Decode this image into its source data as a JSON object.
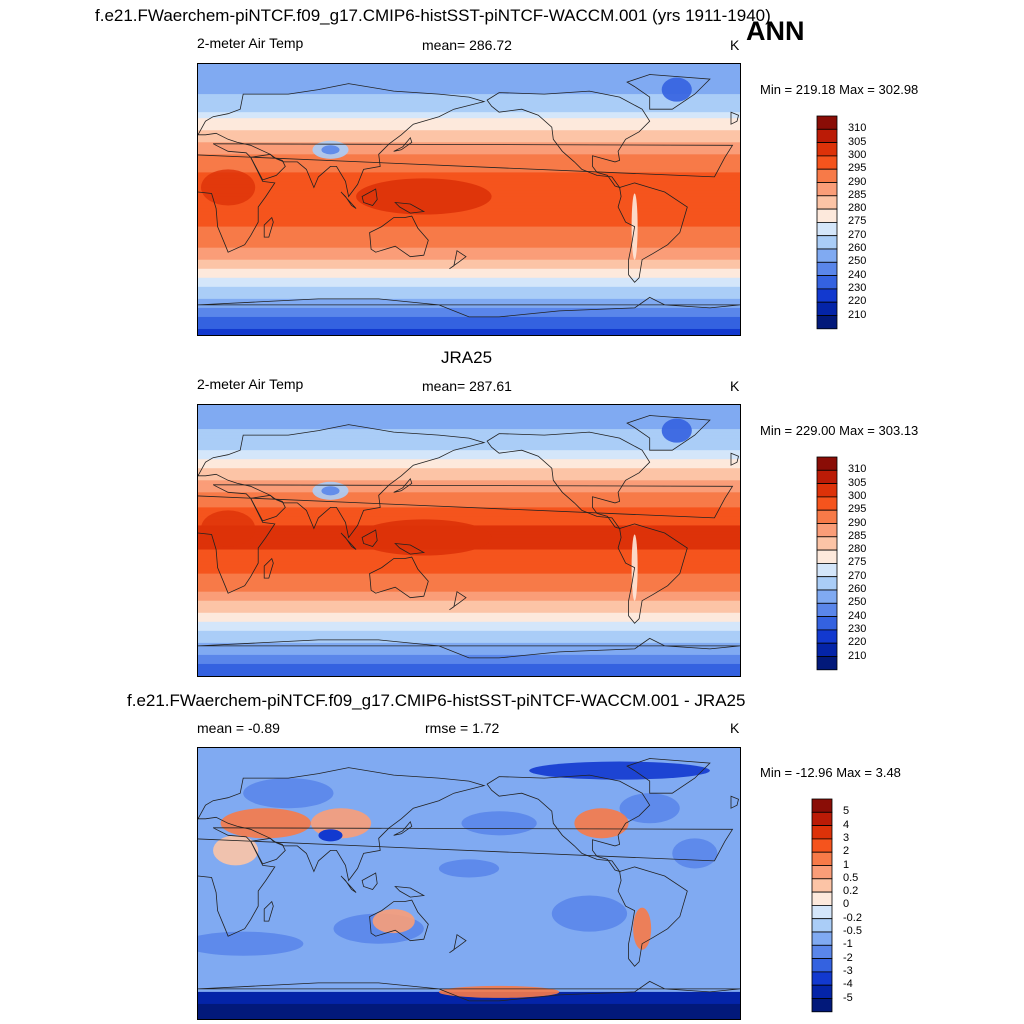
{
  "figure": {
    "title_top": "f.e21.FWaerchem-piNTCF.f09_g17.CMIP6-histSST-piNTCF-WACCM.001 (yrs 1911-1940)",
    "season": "ANN"
  },
  "panels": [
    {
      "id": "model",
      "title": "",
      "left_label": "2-meter Air Temp",
      "center_label": "mean= 286.72",
      "right_label": "K",
      "minmax": "Min = 219.18 Max = 302.98",
      "cbar_labels": [
        "310",
        "305",
        "300",
        "295",
        "290",
        "285",
        "280",
        "275",
        "270",
        "260",
        "250",
        "240",
        "230",
        "220",
        "210"
      ]
    },
    {
      "id": "obs",
      "title": "JRA25",
      "left_label": "2-meter Air Temp",
      "center_label": "mean= 287.61",
      "right_label": "K",
      "minmax": "Min = 229.00 Max = 303.13",
      "cbar_labels": [
        "310",
        "305",
        "300",
        "295",
        "290",
        "285",
        "280",
        "275",
        "270",
        "260",
        "250",
        "240",
        "230",
        "220",
        "210"
      ]
    },
    {
      "id": "diff",
      "title": "f.e21.FWaerchem-piNTCF.f09_g17.CMIP6-histSST-piNTCF-WACCM.001 - JRA25",
      "left_label": "mean =  -0.89",
      "center_label": "rmse =   1.72",
      "right_label": "K",
      "minmax": "Min = -12.96 Max =   3.48",
      "cbar_labels": [
        "5",
        "4",
        "3",
        "2",
        "1",
        "0.5",
        "0.2",
        "0",
        "-0.2",
        "-0.5",
        "-1",
        "-2",
        "-3",
        "-4",
        "-5"
      ]
    }
  ],
  "colors": {
    "abs_scale": [
      "#8a0d06",
      "#bb1b06",
      "#dd3209",
      "#f5541d",
      "#f77a48",
      "#fa9d78",
      "#fcc4a6",
      "#fde9dc",
      "#d4e6fa",
      "#aacdf7",
      "#80aaf2",
      "#5a86ea",
      "#3462e0",
      "#1239cf",
      "#0424a8",
      "#02197a"
    ],
    "diff_scale": [
      "#8a0d06",
      "#bb1b06",
      "#dd3209",
      "#f5541d",
      "#f77a48",
      "#fa9d78",
      "#fcc4a6",
      "#fde9dc",
      "#d4e6fa",
      "#aacdf7",
      "#80aaf2",
      "#5a86ea",
      "#3462e0",
      "#1239cf",
      "#0424a8",
      "#02197a"
    ]
  },
  "chart_data": [
    {
      "type": "heatmap",
      "title": "",
      "variable": "2-meter Air Temp",
      "units": "K",
      "mean": 286.72,
      "min": 219.18,
      "max": 302.98,
      "levels": [
        210,
        220,
        230,
        240,
        250,
        260,
        270,
        275,
        280,
        285,
        290,
        295,
        300,
        305,
        310
      ],
      "zonal_profile": [
        {
          "lat": 90,
          "value": 250
        },
        {
          "lat": 70,
          "value": 260
        },
        {
          "lat": 50,
          "value": 278
        },
        {
          "lat": 30,
          "value": 290
        },
        {
          "lat": 10,
          "value": 299
        },
        {
          "lat": 0,
          "value": 300
        },
        {
          "lat": -10,
          "value": 298
        },
        {
          "lat": -30,
          "value": 291
        },
        {
          "lat": -50,
          "value": 278
        },
        {
          "lat": -65,
          "value": 262
        },
        {
          "lat": -80,
          "value": 238
        },
        {
          "lat": -90,
          "value": 225
        }
      ]
    },
    {
      "type": "heatmap",
      "title": "JRA25",
      "variable": "2-meter Air Temp",
      "units": "K",
      "mean": 287.61,
      "min": 229.0,
      "max": 303.13,
      "levels": [
        210,
        220,
        230,
        240,
        250,
        260,
        270,
        275,
        280,
        285,
        290,
        295,
        300,
        305,
        310
      ],
      "zonal_profile": [
        {
          "lat": 90,
          "value": 252
        },
        {
          "lat": 70,
          "value": 262
        },
        {
          "lat": 50,
          "value": 279
        },
        {
          "lat": 30,
          "value": 291
        },
        {
          "lat": 10,
          "value": 300
        },
        {
          "lat": 0,
          "value": 301
        },
        {
          "lat": -10,
          "value": 299
        },
        {
          "lat": -30,
          "value": 292
        },
        {
          "lat": -50,
          "value": 279
        },
        {
          "lat": -65,
          "value": 264
        },
        {
          "lat": -80,
          "value": 243
        },
        {
          "lat": -90,
          "value": 232
        }
      ]
    },
    {
      "type": "heatmap",
      "title": "f.e21.FWaerchem-piNTCF.f09_g17.CMIP6-histSST-piNTCF-WACCM.001 - JRA25",
      "units": "K",
      "mean": -0.89,
      "rmse": 1.72,
      "min": -12.96,
      "max": 3.48,
      "levels": [
        -5,
        -4,
        -3,
        -2,
        -1,
        -0.5,
        -0.2,
        0,
        0.2,
        0.5,
        1,
        2,
        3,
        4,
        5
      ]
    }
  ]
}
